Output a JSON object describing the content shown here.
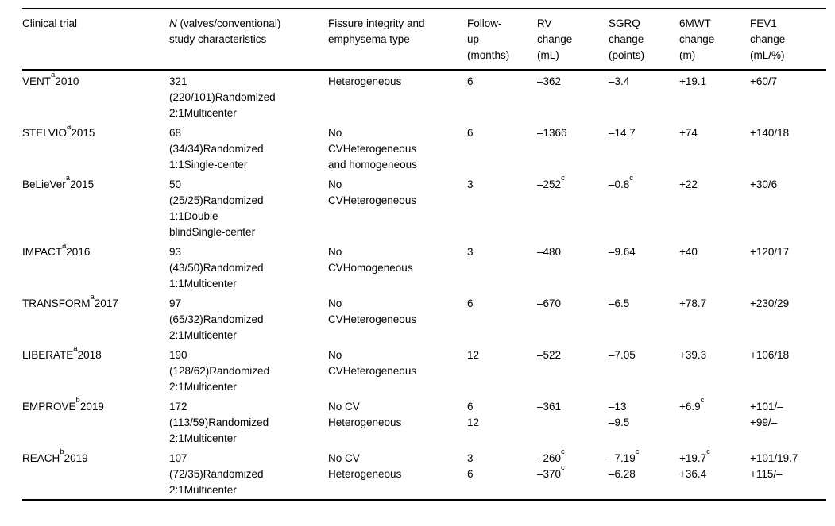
{
  "table": {
    "description": "Clinical trials of endobronchial valve therapy vs conventional treatment",
    "columns": [
      {
        "id": "trial",
        "lines": [
          "Clinical trial"
        ]
      },
      {
        "id": "n_study",
        "lines": [
          "N (valves/conventional)",
          "study characteristics"
        ],
        "italic_lead": true
      },
      {
        "id": "fissure",
        "lines": [
          "Fissure integrity and",
          "emphysema type"
        ]
      },
      {
        "id": "followup",
        "lines": [
          "Follow-",
          "up",
          "(months)"
        ]
      },
      {
        "id": "rv",
        "lines": [
          "RV",
          "change",
          "(mL)"
        ]
      },
      {
        "id": "sgrq",
        "lines": [
          "SGRQ",
          "change",
          "(points)"
        ]
      },
      {
        "id": "mwt",
        "lines": [
          "6MWT",
          "change",
          "(m)"
        ]
      },
      {
        "id": "fev1",
        "lines": [
          "FEV1",
          "change",
          "(mL/%)"
        ]
      }
    ],
    "rows": [
      {
        "trial": {
          "name": "VENT",
          "marker": "a",
          "year": "2010"
        },
        "cells": {
          "n_study": [
            {
              "t": "321"
            },
            {
              "t": "(220/101)Randomized"
            },
            {
              "t": "2:1Multicenter"
            }
          ],
          "fissure": [
            {
              "t": "Heterogeneous"
            }
          ],
          "followup": [
            {
              "t": "6"
            }
          ],
          "rv": [
            {
              "t": "–362"
            }
          ],
          "sgrq": [
            {
              "t": "–3.4"
            }
          ],
          "mwt": [
            {
              "t": "+19.1"
            }
          ],
          "fev1": [
            {
              "t": "+60/7"
            }
          ]
        }
      },
      {
        "trial": {
          "name": "STELVIO",
          "marker": "a",
          "year": "2015"
        },
        "cells": {
          "n_study": [
            {
              "t": "68"
            },
            {
              "t": "(34/34)Randomized"
            },
            {
              "t": "1:1Single-center"
            }
          ],
          "fissure": [
            {
              "t": "No"
            },
            {
              "t": "CVHeterogeneous"
            },
            {
              "t": "and homogeneous"
            }
          ],
          "followup": [
            {
              "t": "6"
            }
          ],
          "rv": [
            {
              "t": "–1366"
            }
          ],
          "sgrq": [
            {
              "t": "–14.7"
            }
          ],
          "mwt": [
            {
              "t": "+74"
            }
          ],
          "fev1": [
            {
              "t": "+140/18"
            }
          ]
        }
      },
      {
        "trial": {
          "name": "BeLieVer",
          "marker": "a",
          "year": "2015"
        },
        "cells": {
          "n_study": [
            {
              "t": "50"
            },
            {
              "t": "(25/25)Randomized"
            },
            {
              "t": "1:1Double"
            },
            {
              "t": "blindSingle-center"
            }
          ],
          "fissure": [
            {
              "t": "No"
            },
            {
              "t": "CVHeterogeneous"
            }
          ],
          "followup": [
            {
              "t": "3"
            }
          ],
          "rv": [
            {
              "t": "–252",
              "sup": "c"
            }
          ],
          "sgrq": [
            {
              "t": "–0.8",
              "sup": "c"
            }
          ],
          "mwt": [
            {
              "t": "+22"
            }
          ],
          "fev1": [
            {
              "t": "+30/6"
            }
          ]
        }
      },
      {
        "trial": {
          "name": "IMPACT",
          "marker": "a",
          "year": "2016"
        },
        "cells": {
          "n_study": [
            {
              "t": "93"
            },
            {
              "t": "(43/50)Randomized"
            },
            {
              "t": "1:1Multicenter"
            }
          ],
          "fissure": [
            {
              "t": "No"
            },
            {
              "t": "CVHomogeneous"
            }
          ],
          "followup": [
            {
              "t": "3"
            }
          ],
          "rv": [
            {
              "t": "–480"
            }
          ],
          "sgrq": [
            {
              "t": "–9.64"
            }
          ],
          "mwt": [
            {
              "t": "+40"
            }
          ],
          "fev1": [
            {
              "t": "+120/17"
            }
          ]
        }
      },
      {
        "trial": {
          "name": "TRANSFORM",
          "marker": "a",
          "year": "2017"
        },
        "cells": {
          "n_study": [
            {
              "t": "97"
            },
            {
              "t": "(65/32)Randomized"
            },
            {
              "t": "2:1Multicenter"
            }
          ],
          "fissure": [
            {
              "t": "No"
            },
            {
              "t": "CVHeterogeneous"
            }
          ],
          "followup": [
            {
              "t": "6"
            }
          ],
          "rv": [
            {
              "t": "–670"
            }
          ],
          "sgrq": [
            {
              "t": "–6.5"
            }
          ],
          "mwt": [
            {
              "t": "+78.7"
            }
          ],
          "fev1": [
            {
              "t": "+230/29"
            }
          ]
        }
      },
      {
        "trial": {
          "name": "LIBERATE",
          "marker": "a",
          "year": "2018"
        },
        "cells": {
          "n_study": [
            {
              "t": "190"
            },
            {
              "t": "(128/62)Randomized"
            },
            {
              "t": "2:1Multicenter"
            }
          ],
          "fissure": [
            {
              "t": "No"
            },
            {
              "t": "CVHeterogeneous"
            }
          ],
          "followup": [
            {
              "t": "12"
            }
          ],
          "rv": [
            {
              "t": "–522"
            }
          ],
          "sgrq": [
            {
              "t": "–7.05"
            }
          ],
          "mwt": [
            {
              "t": "+39.3"
            }
          ],
          "fev1": [
            {
              "t": "+106/18"
            }
          ]
        }
      },
      {
        "trial": {
          "name": "EMPROVE",
          "marker": "b",
          "year": "2019"
        },
        "cells": {
          "n_study": [
            {
              "t": "172"
            },
            {
              "t": "(113/59)Randomized"
            },
            {
              "t": "2:1Multicenter"
            }
          ],
          "fissure": [
            {
              "t": "No CV"
            },
            {
              "t": "Heterogeneous"
            }
          ],
          "followup": [
            {
              "t": "6"
            },
            {
              "t": "12"
            }
          ],
          "rv": [
            {
              "t": "–361"
            }
          ],
          "sgrq": [
            {
              "t": "–13"
            },
            {
              "t": "–9.5"
            }
          ],
          "mwt": [
            {
              "t": "+6.9",
              "sup": "c"
            }
          ],
          "fev1": [
            {
              "t": "+101/–"
            },
            {
              "t": "+99/–"
            }
          ]
        }
      },
      {
        "trial": {
          "name": "REACH",
          "marker": "b",
          "year": "2019"
        },
        "cells": {
          "n_study": [
            {
              "t": "107"
            },
            {
              "t": "(72/35)Randomized"
            },
            {
              "t": "2:1Multicenter"
            }
          ],
          "fissure": [
            {
              "t": "No CV"
            },
            {
              "t": "Heterogeneous"
            }
          ],
          "followup": [
            {
              "t": "3"
            },
            {
              "t": "6"
            }
          ],
          "rv": [
            {
              "t": "–260",
              "sup": "c"
            },
            {
              "t": "–370",
              "sup": "c"
            }
          ],
          "sgrq": [
            {
              "t": "–7.19",
              "sup": "c"
            },
            {
              "t": "–6.28"
            }
          ],
          "mwt": [
            {
              "t": "+19.7",
              "sup": "c"
            },
            {
              "t": "+36.4"
            }
          ],
          "fev1": [
            {
              "t": "+101/19.7"
            },
            {
              "t": "+115/–"
            }
          ]
        }
      }
    ]
  }
}
